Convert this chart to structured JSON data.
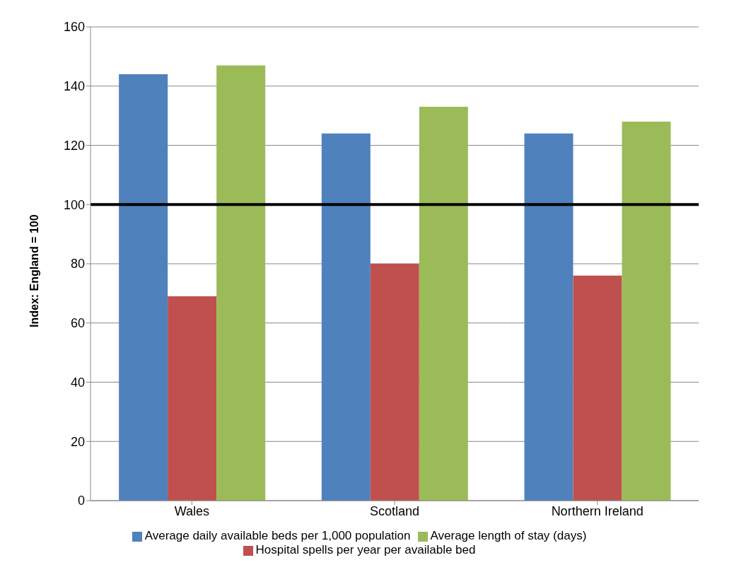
{
  "chart_data": {
    "type": "bar",
    "ylabel": "Index: England  = 100",
    "categories": [
      "Wales",
      "Scotland",
      "Northern Ireland"
    ],
    "series": [
      {
        "name": "Average daily available beds per 1,000 population",
        "color": "#4f81bd",
        "values": [
          144,
          124,
          124
        ]
      },
      {
        "name": "Hospital spells per year per available bed",
        "color": "#c0504d",
        "values": [
          69,
          80,
          76
        ]
      },
      {
        "name": "Average length of stay (days)",
        "color": "#9bbb59",
        "values": [
          147,
          133,
          128
        ]
      }
    ],
    "ylim": [
      0,
      160
    ],
    "yticks": [
      0,
      20,
      40,
      60,
      80,
      100,
      120,
      140,
      160
    ],
    "grid": "y",
    "legend": "bottom",
    "ref_lines": [
      {
        "axis": "y",
        "value": 100,
        "color": "#000000"
      }
    ]
  }
}
